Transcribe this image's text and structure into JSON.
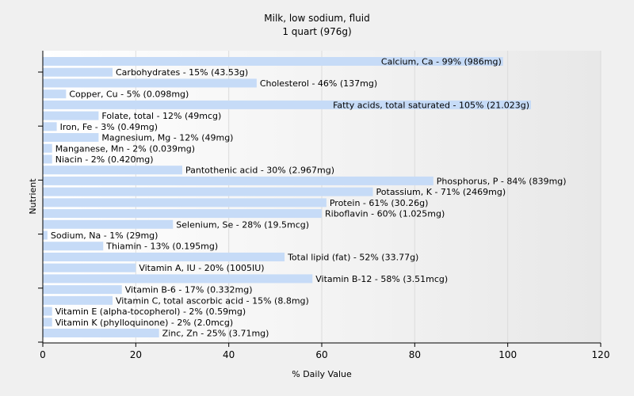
{
  "chart_data": {
    "type": "bar",
    "orientation": "horizontal",
    "title": "Milk, low sodium,  fluid",
    "subtitle": "1 quart (976g)",
    "xlabel": "% Daily Value",
    "ylabel": "Nutrient",
    "xlim": [
      0,
      120
    ],
    "xticks": [
      0,
      20,
      40,
      60,
      80,
      100,
      120
    ],
    "grid": "vertical",
    "bar_color": "#c6dbf7",
    "categories": [
      "Calcium, Ca",
      "Carbohydrates",
      "Cholesterol",
      "Copper, Cu",
      "Fatty acids, total saturated",
      "Folate, total",
      "Iron, Fe",
      "Magnesium, Mg",
      "Manganese, Mn",
      "Niacin",
      "Pantothenic acid",
      "Phosphorus, P",
      "Potassium, K",
      "Protein",
      "Riboflavin",
      "Selenium, Se",
      "Sodium, Na",
      "Thiamin",
      "Total lipid (fat)",
      "Vitamin A, IU",
      "Vitamin B-12",
      "Vitamin B-6",
      "Vitamin C, total ascorbic acid",
      "Vitamin E (alpha-tocopherol)",
      "Vitamin K (phylloquinone)",
      "Zinc, Zn"
    ],
    "values": [
      99,
      15,
      46,
      5,
      105,
      12,
      3,
      12,
      2,
      2,
      30,
      84,
      71,
      61,
      60,
      28,
      1,
      13,
      52,
      20,
      58,
      17,
      15,
      2,
      2,
      25
    ],
    "labels": [
      "Calcium, Ca - 99% (986mg)",
      "Carbohydrates - 15% (43.53g)",
      "Cholesterol - 46% (137mg)",
      "Copper, Cu - 5% (0.098mg)",
      "Fatty acids, total saturated - 105% (21.023g)",
      "Folate, total - 12% (49mcg)",
      "Iron, Fe - 3% (0.49mg)",
      "Magnesium, Mg - 12% (49mg)",
      "Manganese, Mn - 2% (0.039mg)",
      "Niacin - 2% (0.420mg)",
      "Pantothenic acid - 30% (2.967mg)",
      "Phosphorus, P - 84% (839mg)",
      "Potassium, K - 71% (2469mg)",
      "Protein - 61% (30.26g)",
      "Riboflavin - 60% (1.025mg)",
      "Selenium, Se - 28% (19.5mcg)",
      "Sodium, Na - 1% (29mg)",
      "Thiamin - 13% (0.195mg)",
      "Total lipid (fat) - 52% (33.77g)",
      "Vitamin A, IU - 20% (1005IU)",
      "Vitamin B-12 - 58% (3.51mcg)",
      "Vitamin B-6 - 17% (0.332mg)",
      "Vitamin C, total ascorbic acid - 15% (8.8mg)",
      "Vitamin E (alpha-tocopherol) - 2% (0.59mg)",
      "Vitamin K (phylloquinone) - 2% (2.0mcg)",
      "Zinc, Zn - 25% (3.71mg)"
    ]
  }
}
